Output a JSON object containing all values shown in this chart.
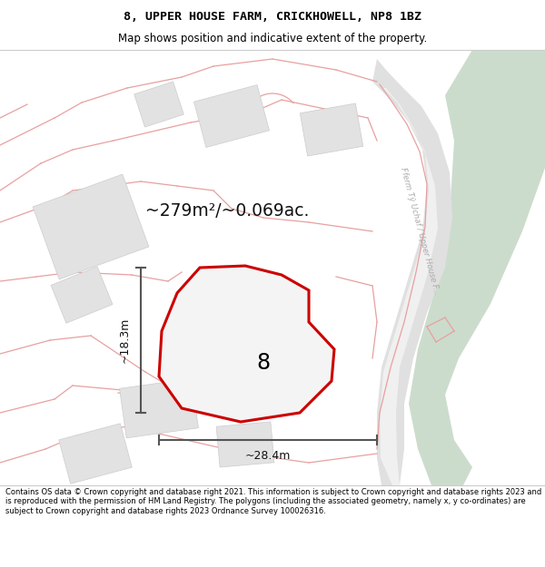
{
  "title_line1": "8, UPPER HOUSE FARM, CRICKHOWELL, NP8 1BZ",
  "title_line2": "Map shows position and indicative extent of the property.",
  "footer_text": "Contains OS data © Crown copyright and database right 2021. This information is subject to Crown copyright and database rights 2023 and is reproduced with the permission of HM Land Registry. The polygons (including the associated geometry, namely x, y co-ordinates) are subject to Crown copyright and database rights 2023 Ordnance Survey 100026316.",
  "area_label": "~279m²/~0.069ac.",
  "plot_number": "8",
  "dim_width": "~28.4m",
  "dim_height": "~18.3m",
  "road_label": "Fferm Tÿ Uchaf / Upper House F...",
  "bg_color": "#ffffff",
  "red_line_color": "#cc0000",
  "pink_line_color": "#e8a0a0",
  "green_area_color": "#ccdccc",
  "building_color": "#e6e6e6",
  "road_fill": "#e8e8e8",
  "dim_line_color": "#555555"
}
